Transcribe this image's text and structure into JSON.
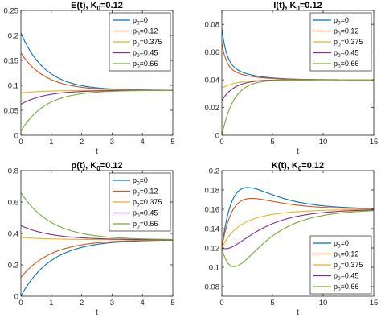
{
  "chart_data": [
    {
      "type": "line",
      "title_main": "E(t), K",
      "title_sub": "0",
      "title_tail": "=0.12",
      "xlabel": "t",
      "xlim": [
        0,
        5
      ],
      "ylim": [
        0,
        0.25
      ],
      "xticks": [
        "0",
        "1",
        "2",
        "3",
        "4",
        "5"
      ],
      "yticks": [
        "0",
        "0.05",
        "0.1",
        "0.15",
        "0.2",
        "0.25"
      ],
      "legend_position": "top-right",
      "series": [
        {
          "name_main": "p",
          "name_sub": "0",
          "name_tail": "=0",
          "color": "#0072BD",
          "model": "decay",
          "start": 0.205,
          "end": 0.09,
          "rate": 1.25
        },
        {
          "name_main": "p",
          "name_sub": "0",
          "name_tail": "=0.12",
          "color": "#D95319",
          "model": "decay",
          "start": 0.165,
          "end": 0.09,
          "rate": 1.25
        },
        {
          "name_main": "p",
          "name_sub": "0",
          "name_tail": "=0.375",
          "color": "#EDB120",
          "model": "decay",
          "start": 0.085,
          "end": 0.09,
          "rate": 1.25
        },
        {
          "name_main": "p",
          "name_sub": "0",
          "name_tail": "=0.45",
          "color": "#7E2F8E",
          "model": "decay",
          "start": 0.062,
          "end": 0.09,
          "rate": 1.25
        },
        {
          "name_main": "p",
          "name_sub": "0",
          "name_tail": "=0.66",
          "color": "#77AC30",
          "model": "decay",
          "start": 0.008,
          "end": 0.09,
          "rate": 1.25
        }
      ]
    },
    {
      "type": "line",
      "title_main": "I(t), K",
      "title_sub": "0",
      "title_tail": "=0.12",
      "xlabel": "t",
      "xlim": [
        0,
        15
      ],
      "ylim": [
        0,
        0.09
      ],
      "xticks": [
        "0",
        "5",
        "10",
        "15"
      ],
      "yticks": [
        "0",
        "0.02",
        "0.04",
        "0.06",
        "0.08"
      ],
      "legend_position": "top-right",
      "series": [
        {
          "name_main": "p",
          "name_sub": "0",
          "name_tail": "=0",
          "color": "#0072BD",
          "model": "bidecay",
          "start": 0.077,
          "end": 0.04,
          "rate": 2.2,
          "rate2": 0.45,
          "mix": 0.65
        },
        {
          "name_main": "p",
          "name_sub": "0",
          "name_tail": "=0.12",
          "color": "#D95319",
          "model": "bidecay",
          "start": 0.066,
          "end": 0.04,
          "rate": 2.2,
          "rate2": 0.45,
          "mix": 0.65
        },
        {
          "name_main": "p",
          "name_sub": "0",
          "name_tail": "=0.375",
          "color": "#EDB120",
          "model": "decay",
          "start": 0.034,
          "end": 0.04,
          "rate": 0.7
        },
        {
          "name_main": "p",
          "name_sub": "0",
          "name_tail": "=0.45",
          "color": "#7E2F8E",
          "model": "decay",
          "start": 0.025,
          "end": 0.04,
          "rate": 0.8
        },
        {
          "name_main": "p",
          "name_sub": "0",
          "name_tail": "=0.66",
          "color": "#77AC30",
          "model": "decay",
          "start": 0.0,
          "end": 0.04,
          "rate": 0.85
        }
      ]
    },
    {
      "type": "line",
      "title_main": "p(t), K",
      "title_sub": "0",
      "title_tail": "=0.12",
      "xlabel": "t",
      "xlim": [
        0,
        5
      ],
      "ylim": [
        0,
        0.8
      ],
      "xticks": [
        "0",
        "1",
        "2",
        "3",
        "4",
        "5"
      ],
      "yticks": [
        "0",
        "0.2",
        "0.4",
        "0.6",
        "0.8"
      ],
      "legend_position": "top-right",
      "series": [
        {
          "name_main": "p",
          "name_sub": "0",
          "name_tail": "=0",
          "color": "#0072BD",
          "model": "decay",
          "start": 0.0,
          "end": 0.36,
          "rate": 1.0
        },
        {
          "name_main": "p",
          "name_sub": "0",
          "name_tail": "=0.12",
          "color": "#D95319",
          "model": "decay",
          "start": 0.12,
          "end": 0.36,
          "rate": 1.0
        },
        {
          "name_main": "p",
          "name_sub": "0",
          "name_tail": "=0.375",
          "color": "#EDB120",
          "model": "decay",
          "start": 0.375,
          "end": 0.36,
          "rate": 1.0
        },
        {
          "name_main": "p",
          "name_sub": "0",
          "name_tail": "=0.45",
          "color": "#7E2F8E",
          "model": "decay",
          "start": 0.45,
          "end": 0.36,
          "rate": 1.0
        },
        {
          "name_main": "p",
          "name_sub": "0",
          "name_tail": "=0.66",
          "color": "#77AC30",
          "model": "decay",
          "start": 0.66,
          "end": 0.36,
          "rate": 1.0
        }
      ]
    },
    {
      "type": "line",
      "title_main": "K(t), K",
      "title_sub": "0",
      "title_tail": "=0.12",
      "xlabel": "t",
      "xlim": [
        0,
        15
      ],
      "ylim": [
        0.07,
        0.2
      ],
      "xticks": [
        "0",
        "5",
        "10",
        "15"
      ],
      "yticks": [
        "0.08",
        "0.1",
        "0.12",
        "0.14",
        "0.16",
        "0.18",
        "0.2"
      ],
      "legend_position": "bottom-right",
      "series": [
        {
          "name_main": "p",
          "name_sub": "0",
          "name_tail": "=0",
          "color": "#0072BD",
          "model": "hump",
          "start": 0.12,
          "end": 0.16,
          "rate": 0.3,
          "amp": 0.113,
          "rate2": 0.9
        },
        {
          "name_main": "p",
          "name_sub": "0",
          "name_tail": "=0.12",
          "color": "#D95319",
          "model": "hump",
          "start": 0.12,
          "end": 0.16,
          "rate": 0.3,
          "amp": 0.081,
          "rate2": 0.9
        },
        {
          "name_main": "p",
          "name_sub": "0",
          "name_tail": "=0.375",
          "color": "#EDB120",
          "model": "hump",
          "start": 0.12,
          "end": 0.16,
          "rate": 0.3,
          "amp": 0.017,
          "rate2": 0.9
        },
        {
          "name_main": "p",
          "name_sub": "0",
          "name_tail": "=0.45",
          "color": "#7E2F8E",
          "model": "hump",
          "start": 0.12,
          "end": 0.16,
          "rate": 0.3,
          "amp": -0.028,
          "rate2": 0.9
        },
        {
          "name_main": "p",
          "name_sub": "0",
          "name_tail": "=0.66",
          "color": "#77AC30",
          "model": "hump",
          "start": 0.12,
          "end": 0.16,
          "rate": 0.3,
          "amp": -0.088,
          "rate2": 0.9
        }
      ]
    }
  ]
}
